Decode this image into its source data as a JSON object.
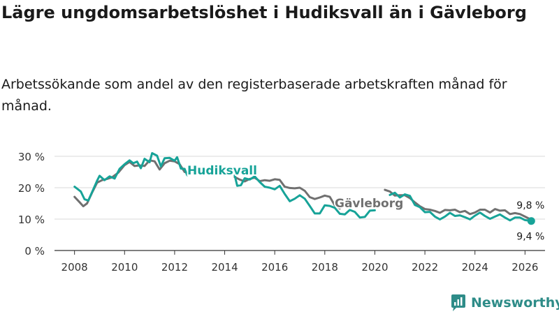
{
  "title": "Lägre ungdomsarbetslöshet i Hudiksvall än i Gävleborg",
  "subtitle": "Arbetssökande som andel av den registerbaserade arbetskraften månad för månad.",
  "brand": {
    "name": "Newsworthy"
  },
  "colors": {
    "hudiksvall": "#17a398",
    "gavleborg": "#707070",
    "grid": "#d9d9d9",
    "axis": "#333333"
  },
  "chart_data": {
    "type": "line",
    "title": "Lägre ungdomsarbetslöshet i Hudiksvall än i Gävleborg",
    "xlabel": "",
    "ylabel": "",
    "xlim": [
      2007.2,
      2026.8
    ],
    "ylim": [
      0,
      30
    ],
    "y_ticks": [
      0,
      10,
      20,
      30
    ],
    "y_tick_labels": [
      "0 %",
      "10 %",
      "20 %",
      "30 %"
    ],
    "x_ticks": [
      2008,
      2010,
      2012,
      2014,
      2016,
      2018,
      2020,
      2022,
      2024,
      2026
    ],
    "x_tick_labels": [
      "2008",
      "2010",
      "2012",
      "2014",
      "2016",
      "2018",
      "2020",
      "2022",
      "2024",
      "2026"
    ],
    "series": [
      {
        "name": "Hudiksvall",
        "label_text": "Hudiksvall",
        "end_label": "9,4 %",
        "end_value": 9.4,
        "points": [
          [
            2008.0,
            20.3
          ],
          [
            2008.25,
            18.8
          ],
          [
            2008.4,
            16.3
          ],
          [
            2008.55,
            15.9
          ],
          [
            2008.75,
            19.5
          ],
          [
            2008.9,
            22.2
          ],
          [
            2009.0,
            23.8
          ],
          [
            2009.2,
            22.4
          ],
          [
            2009.4,
            23.6
          ],
          [
            2009.6,
            22.9
          ],
          [
            2009.8,
            26.0
          ],
          [
            2010.0,
            27.5
          ],
          [
            2010.2,
            28.7
          ],
          [
            2010.35,
            27.8
          ],
          [
            2010.5,
            28.3
          ],
          [
            2010.65,
            26.2
          ],
          [
            2010.8,
            29.2
          ],
          [
            2011.0,
            28.1
          ],
          [
            2011.1,
            31.0
          ],
          [
            2011.3,
            30.2
          ],
          [
            2011.45,
            26.8
          ],
          [
            2011.6,
            29.4
          ],
          [
            2011.8,
            29.5
          ],
          [
            2012.0,
            28.6
          ],
          [
            2012.1,
            29.7
          ],
          [
            2012.25,
            26.1
          ],
          [
            2012.4,
            26.0
          ],
          [
            2012.5,
            24.0
          ],
          null,
          [
            2014.4,
            23.9
          ],
          [
            2014.5,
            20.6
          ],
          [
            2014.65,
            20.8
          ],
          [
            2014.8,
            23.0
          ],
          [
            2015.0,
            22.6
          ],
          [
            2015.2,
            23.6
          ],
          [
            2015.4,
            21.8
          ],
          [
            2015.6,
            20.3
          ],
          [
            2015.8,
            20.0
          ],
          [
            2016.0,
            19.5
          ],
          [
            2016.2,
            20.6
          ],
          [
            2016.4,
            18.0
          ],
          [
            2016.6,
            15.7
          ],
          [
            2016.8,
            16.5
          ],
          [
            2017.0,
            17.6
          ],
          [
            2017.2,
            16.5
          ],
          [
            2017.4,
            14.2
          ],
          [
            2017.6,
            11.8
          ],
          [
            2017.8,
            11.8
          ],
          [
            2018.0,
            14.4
          ],
          [
            2018.2,
            14.2
          ],
          [
            2018.4,
            13.6
          ],
          [
            2018.6,
            11.7
          ],
          [
            2018.8,
            11.5
          ],
          [
            2019.0,
            12.9
          ],
          [
            2019.2,
            12.3
          ],
          [
            2019.4,
            10.5
          ],
          [
            2019.6,
            10.7
          ],
          [
            2019.8,
            12.7
          ],
          [
            2020.0,
            12.8
          ],
          null,
          [
            2020.6,
            17.7
          ],
          [
            2020.8,
            18.4
          ],
          [
            2021.0,
            16.9
          ],
          [
            2021.2,
            17.9
          ],
          [
            2021.4,
            17.4
          ],
          [
            2021.6,
            14.5
          ],
          [
            2021.8,
            13.8
          ],
          [
            2022.0,
            12.2
          ],
          [
            2022.2,
            12.3
          ],
          [
            2022.4,
            10.8
          ],
          [
            2022.6,
            9.9
          ],
          [
            2022.8,
            10.8
          ],
          [
            2023.0,
            12.0
          ],
          [
            2023.2,
            11.0
          ],
          [
            2023.4,
            11.2
          ],
          [
            2023.6,
            10.6
          ],
          [
            2023.8,
            9.9
          ],
          [
            2024.0,
            11.1
          ],
          [
            2024.2,
            12.1
          ],
          [
            2024.4,
            11.0
          ],
          [
            2024.6,
            10.1
          ],
          [
            2024.8,
            10.8
          ],
          [
            2025.0,
            11.5
          ],
          [
            2025.2,
            10.5
          ],
          [
            2025.4,
            9.6
          ],
          [
            2025.6,
            10.5
          ],
          [
            2025.8,
            10.5
          ],
          [
            2026.0,
            9.7
          ],
          [
            2026.25,
            9.4
          ]
        ]
      },
      {
        "name": "Gävleborg",
        "label_text": "Gävleborg",
        "end_label": "9,8 %",
        "end_value": 9.8,
        "points": [
          [
            2008.0,
            17.1
          ],
          [
            2008.2,
            15.4
          ],
          [
            2008.35,
            14.1
          ],
          [
            2008.5,
            15.0
          ],
          [
            2008.7,
            18.4
          ],
          [
            2008.9,
            21.6
          ],
          [
            2009.1,
            22.4
          ],
          [
            2009.3,
            22.8
          ],
          [
            2009.5,
            23.3
          ],
          [
            2009.75,
            24.8
          ],
          [
            2010.0,
            27.2
          ],
          [
            2010.2,
            28.2
          ],
          [
            2010.4,
            26.9
          ],
          [
            2010.6,
            27.1
          ],
          [
            2010.8,
            26.9
          ],
          [
            2011.0,
            28.7
          ],
          [
            2011.2,
            28.4
          ],
          [
            2011.4,
            25.8
          ],
          [
            2011.6,
            27.8
          ],
          [
            2011.8,
            28.6
          ],
          [
            2012.0,
            28.4
          ],
          [
            2012.2,
            27.5
          ],
          [
            2012.4,
            25.0
          ],
          null,
          [
            2014.4,
            23.4
          ],
          [
            2014.6,
            22.6
          ],
          [
            2014.8,
            22.0
          ],
          [
            2015.0,
            22.8
          ],
          [
            2015.2,
            23.2
          ],
          [
            2015.4,
            22.1
          ],
          [
            2015.6,
            22.4
          ],
          [
            2015.8,
            22.2
          ],
          [
            2016.0,
            22.7
          ],
          [
            2016.2,
            22.5
          ],
          [
            2016.4,
            20.3
          ],
          [
            2016.6,
            19.9
          ],
          [
            2016.8,
            19.8
          ],
          [
            2017.0,
            20.0
          ],
          [
            2017.2,
            19.0
          ],
          [
            2017.4,
            17.0
          ],
          [
            2017.6,
            16.4
          ],
          [
            2017.8,
            16.9
          ],
          [
            2018.0,
            17.5
          ],
          [
            2018.2,
            17.1
          ],
          [
            2018.4,
            14.4
          ],
          [
            2018.6,
            13.4
          ],
          null,
          [
            2020.4,
            19.3
          ],
          [
            2020.6,
            18.8
          ],
          [
            2020.8,
            17.5
          ],
          [
            2021.0,
            17.6
          ],
          [
            2021.2,
            17.6
          ],
          [
            2021.4,
            16.7
          ],
          [
            2021.6,
            15.3
          ],
          [
            2021.8,
            14.1
          ],
          [
            2022.0,
            13.2
          ],
          [
            2022.2,
            13.0
          ],
          [
            2022.4,
            12.6
          ],
          [
            2022.6,
            12.0
          ],
          [
            2022.8,
            12.9
          ],
          [
            2023.0,
            12.8
          ],
          [
            2023.2,
            13.0
          ],
          [
            2023.4,
            12.2
          ],
          [
            2023.6,
            12.6
          ],
          [
            2023.8,
            11.6
          ],
          [
            2024.0,
            12.1
          ],
          [
            2024.2,
            13.0
          ],
          [
            2024.4,
            13.0
          ],
          [
            2024.6,
            12.1
          ],
          [
            2024.8,
            13.2
          ],
          [
            2025.0,
            12.7
          ],
          [
            2025.2,
            12.8
          ],
          [
            2025.4,
            11.6
          ],
          [
            2025.6,
            11.9
          ],
          [
            2025.8,
            11.6
          ],
          [
            2026.0,
            10.8
          ],
          [
            2026.25,
            9.8
          ]
        ]
      }
    ]
  }
}
